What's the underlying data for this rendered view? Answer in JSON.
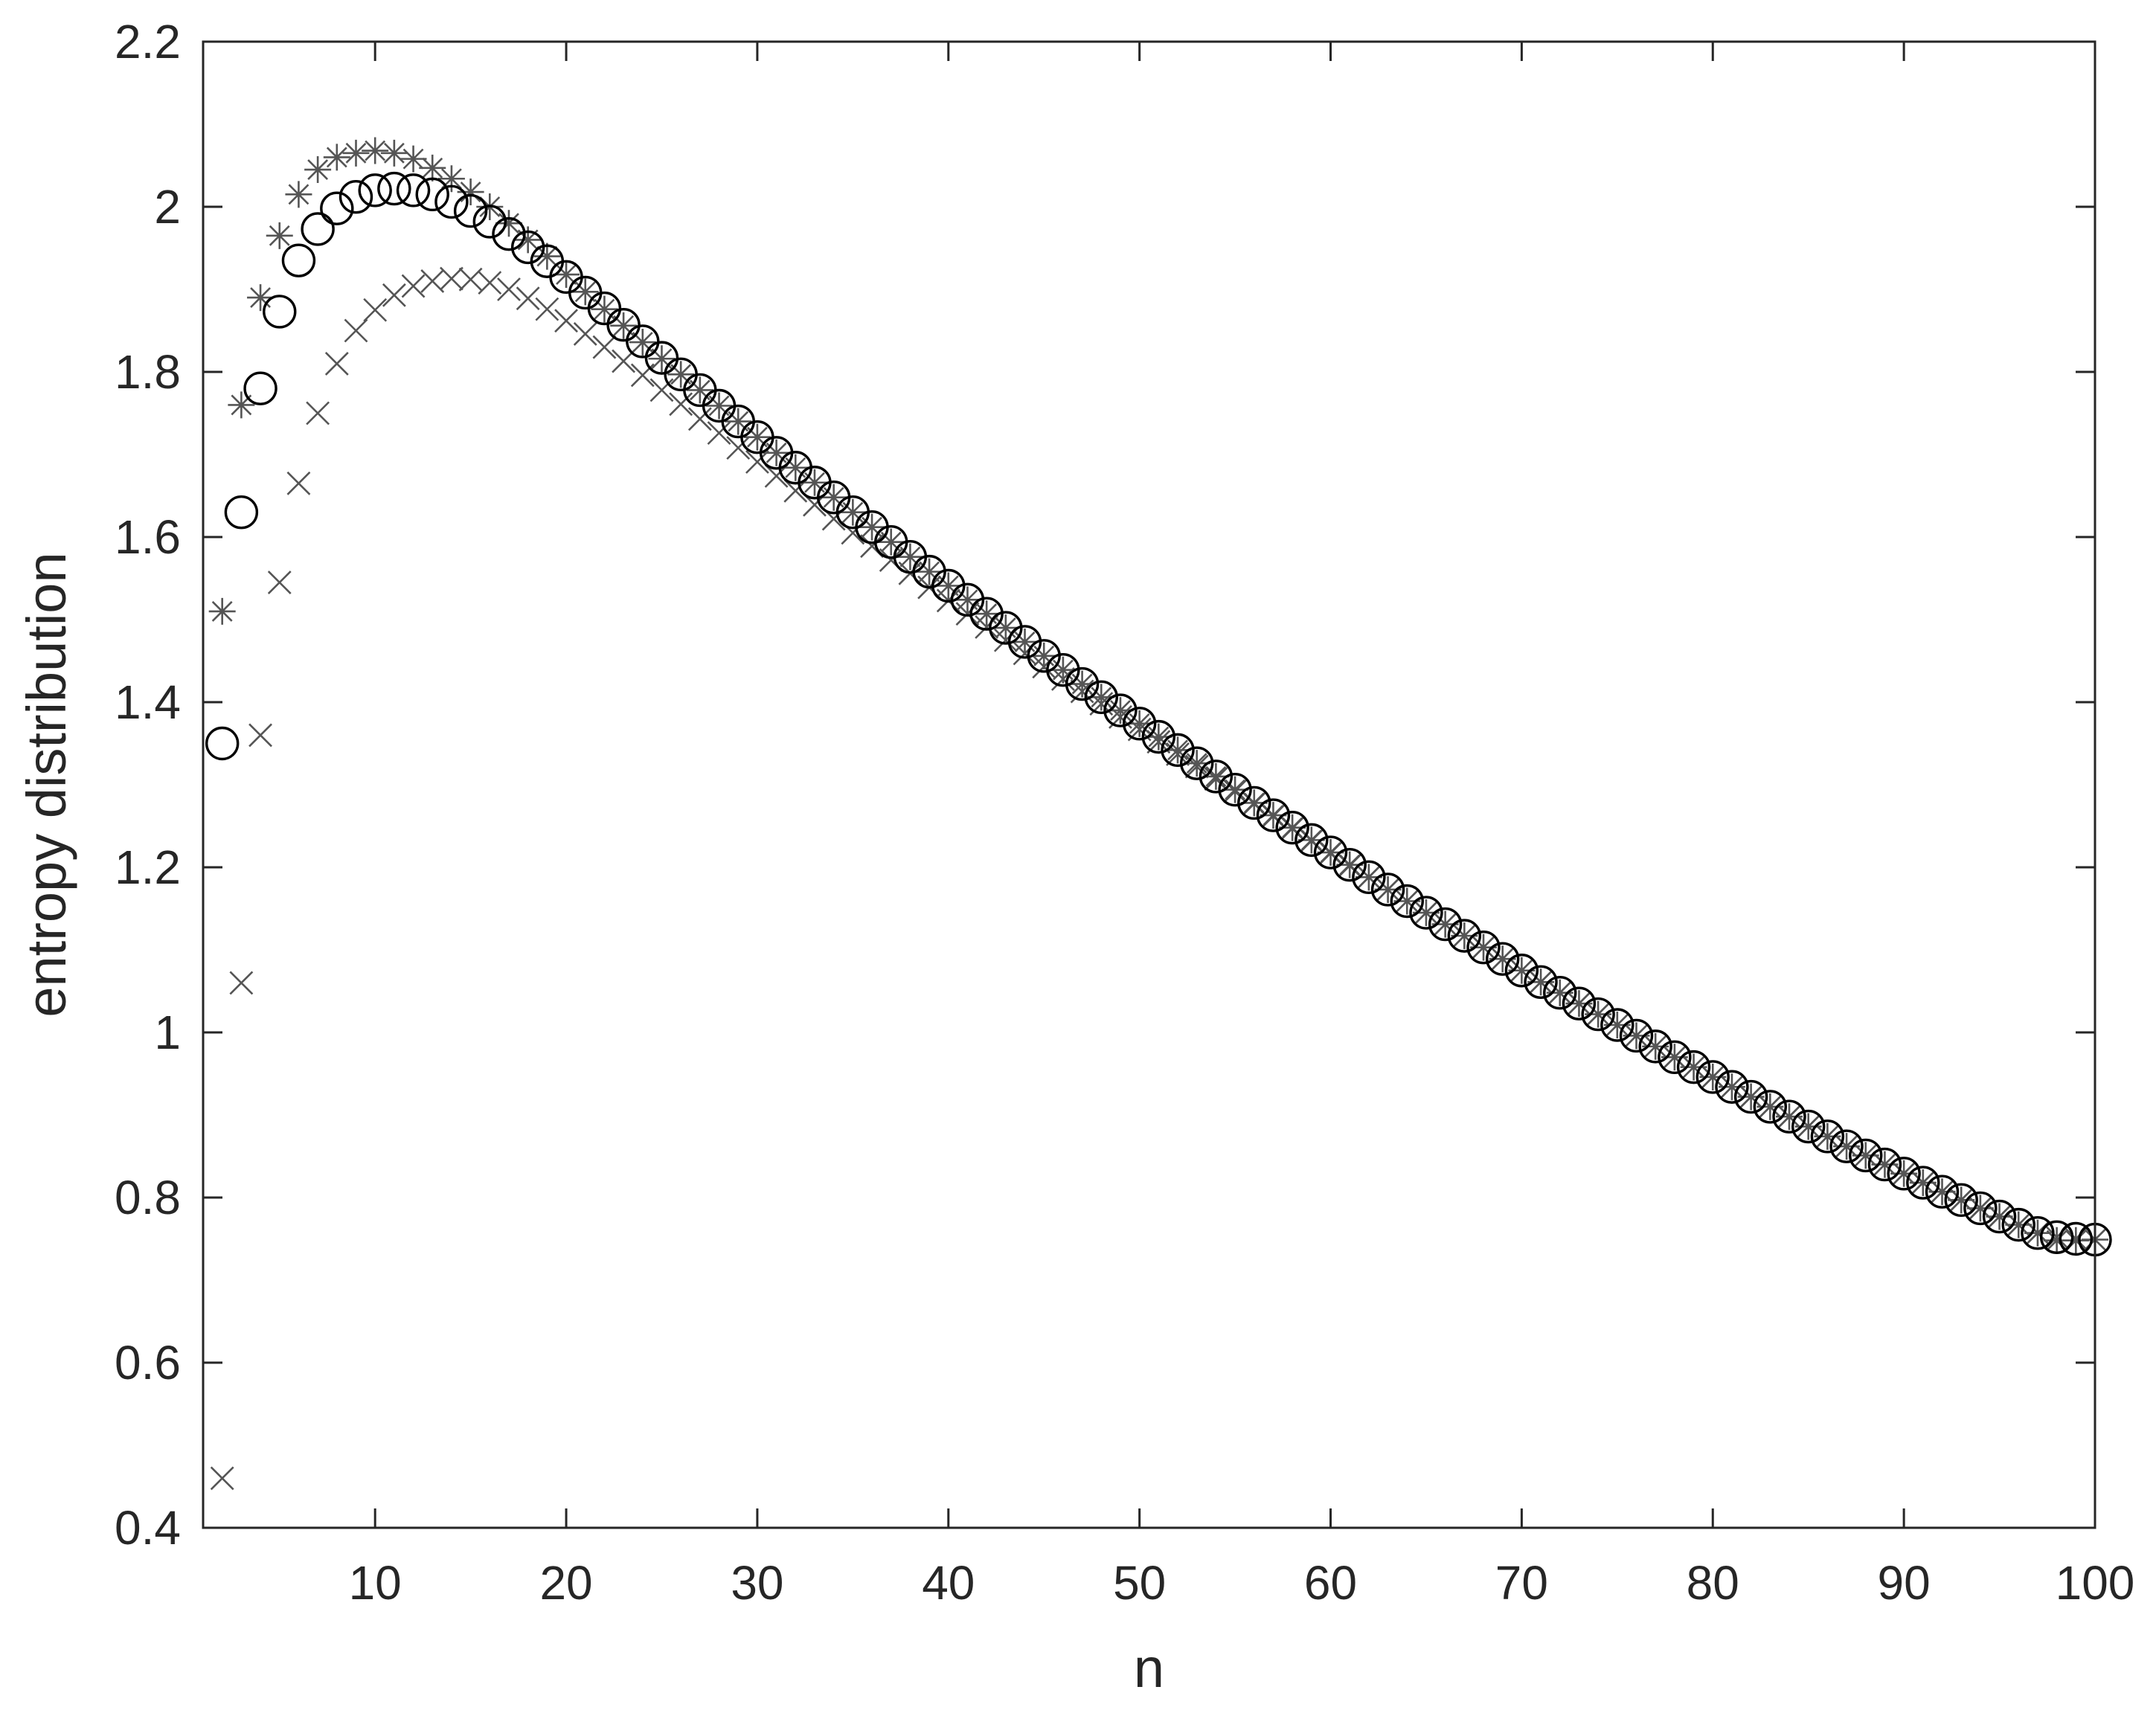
{
  "chart_data": {
    "type": "scatter",
    "title": "",
    "xlabel": "n",
    "ylabel": "entropy distribution",
    "xlim": [
      1,
      100
    ],
    "ylim": [
      0.4,
      2.2
    ],
    "grid": false,
    "legend": "none",
    "x_ticks": [
      10,
      20,
      30,
      40,
      50,
      60,
      70,
      80,
      90,
      100
    ],
    "x_tick_labels": [
      "10",
      "20",
      "30",
      "40",
      "50",
      "60",
      "70",
      "80",
      "90",
      "100"
    ],
    "y_ticks": [
      0.4,
      0.6,
      0.8,
      1.0,
      1.2,
      1.4,
      1.6,
      1.8,
      2.0,
      2.2
    ],
    "y_tick_labels": [
      "0.4",
      "0.6",
      "0.8",
      "1",
      "1.2",
      "1.4",
      "1.6",
      "1.8",
      "2",
      "2.2"
    ],
    "series": [
      {
        "marker": "star",
        "color": "#555555",
        "x": [
          2,
          3,
          4,
          5,
          6,
          7,
          8,
          9,
          10,
          11,
          12,
          13,
          14,
          15,
          16,
          17,
          18,
          19,
          20,
          21,
          22,
          23,
          24,
          25,
          26,
          27,
          28,
          29,
          30,
          31,
          32,
          33,
          34,
          35,
          36,
          37,
          38,
          39,
          40,
          41,
          42,
          43,
          44,
          45,
          46,
          47,
          48,
          49,
          50,
          51,
          52,
          53,
          54,
          55,
          56,
          57,
          58,
          59,
          60,
          61,
          62,
          63,
          64,
          65,
          66,
          67,
          68,
          69,
          70,
          71,
          72,
          73,
          74,
          75,
          76,
          77,
          78,
          79,
          80,
          81,
          82,
          83,
          84,
          85,
          86,
          87,
          88,
          89,
          90,
          91,
          92,
          93,
          94,
          95,
          96,
          97,
          98,
          99,
          100
        ],
        "values": [
          1.51,
          1.76,
          1.89,
          1.965,
          2.015,
          2.045,
          2.06,
          2.065,
          2.068,
          2.065,
          2.058,
          2.047,
          2.034,
          2.018,
          2.0,
          1.98,
          1.96,
          1.94,
          1.918,
          1.897,
          1.876,
          1.856,
          1.836,
          1.816,
          1.797,
          1.778,
          1.759,
          1.74,
          1.721,
          1.702,
          1.684,
          1.666,
          1.648,
          1.63,
          1.612,
          1.594,
          1.576,
          1.558,
          1.541,
          1.524,
          1.507,
          1.49,
          1.473,
          1.456,
          1.439,
          1.422,
          1.406,
          1.39,
          1.374,
          1.358,
          1.342,
          1.326,
          1.31,
          1.294,
          1.278,
          1.263,
          1.248,
          1.233,
          1.218,
          1.203,
          1.188,
          1.173,
          1.159,
          1.145,
          1.131,
          1.117,
          1.103,
          1.089,
          1.075,
          1.061,
          1.048,
          1.035,
          1.022,
          1.009,
          0.996,
          0.983,
          0.97,
          0.958,
          0.946,
          0.934,
          0.922,
          0.91,
          0.898,
          0.886,
          0.874,
          0.862,
          0.851,
          0.84,
          0.829,
          0.818,
          0.807,
          0.797,
          0.787,
          0.777,
          0.767,
          0.757,
          0.748,
          0.748,
          0.749
        ]
      },
      {
        "marker": "circle",
        "color": "#000000",
        "x": [
          2,
          3,
          4,
          5,
          6,
          7,
          8,
          9,
          10,
          11,
          12,
          13,
          14,
          15,
          16,
          17,
          18,
          19,
          20,
          21,
          22,
          23,
          24,
          25,
          26,
          27,
          28,
          29,
          30,
          31,
          32,
          33,
          34,
          35,
          36,
          37,
          38,
          39,
          40,
          41,
          42,
          43,
          44,
          45,
          46,
          47,
          48,
          49,
          50,
          51,
          52,
          53,
          54,
          55,
          56,
          57,
          58,
          59,
          60,
          61,
          62,
          63,
          64,
          65,
          66,
          67,
          68,
          69,
          70,
          71,
          72,
          73,
          74,
          75,
          76,
          77,
          78,
          79,
          80,
          81,
          82,
          83,
          84,
          85,
          86,
          87,
          88,
          89,
          90,
          91,
          92,
          93,
          94,
          95,
          96,
          97,
          98,
          99,
          100
        ],
        "values": [
          1.35,
          1.63,
          1.78,
          1.873,
          1.935,
          1.973,
          1.998,
          2.012,
          2.02,
          2.022,
          2.02,
          2.015,
          2.006,
          1.995,
          1.982,
          1.967,
          1.951,
          1.934,
          1.915,
          1.896,
          1.877,
          1.857,
          1.837,
          1.817,
          1.797,
          1.778,
          1.759,
          1.74,
          1.721,
          1.702,
          1.684,
          1.666,
          1.648,
          1.63,
          1.612,
          1.594,
          1.576,
          1.558,
          1.541,
          1.524,
          1.507,
          1.49,
          1.473,
          1.456,
          1.439,
          1.422,
          1.406,
          1.39,
          1.374,
          1.358,
          1.342,
          1.326,
          1.31,
          1.294,
          1.278,
          1.263,
          1.248,
          1.233,
          1.218,
          1.203,
          1.188,
          1.173,
          1.159,
          1.145,
          1.131,
          1.117,
          1.103,
          1.089,
          1.075,
          1.061,
          1.048,
          1.035,
          1.022,
          1.009,
          0.996,
          0.983,
          0.97,
          0.958,
          0.946,
          0.934,
          0.922,
          0.91,
          0.898,
          0.886,
          0.874,
          0.862,
          0.851,
          0.84,
          0.829,
          0.818,
          0.807,
          0.797,
          0.787,
          0.777,
          0.767,
          0.757,
          0.752,
          0.75,
          0.749
        ]
      },
      {
        "marker": "x",
        "color": "#555555",
        "x": [
          2,
          3,
          4,
          5,
          6,
          7,
          8,
          9,
          10,
          11,
          12,
          13,
          14,
          15,
          16,
          17,
          18,
          19,
          20,
          21,
          22,
          23,
          24,
          25,
          26,
          27,
          28,
          29,
          30,
          31,
          32,
          33,
          34,
          35,
          36,
          37,
          38,
          39,
          40,
          41,
          42,
          43,
          44,
          45,
          46,
          47,
          48,
          49,
          50,
          51,
          52,
          53,
          54,
          55,
          56,
          57,
          58,
          59,
          60,
          61,
          62,
          63,
          64,
          65,
          66,
          67,
          68,
          69,
          70,
          71,
          72,
          73,
          74,
          75,
          76,
          77,
          78,
          79,
          80,
          81,
          82,
          83,
          84,
          85,
          86,
          87,
          88,
          89,
          90,
          91,
          92,
          93,
          94,
          95,
          96,
          97,
          98,
          99,
          100
        ],
        "values": [
          0.46,
          1.06,
          1.36,
          1.545,
          1.665,
          1.75,
          1.81,
          1.85,
          1.875,
          1.893,
          1.904,
          1.91,
          1.913,
          1.912,
          1.908,
          1.9,
          1.889,
          1.876,
          1.862,
          1.846,
          1.83,
          1.813,
          1.796,
          1.778,
          1.761,
          1.743,
          1.726,
          1.708,
          1.691,
          1.674,
          1.656,
          1.639,
          1.622,
          1.605,
          1.589,
          1.572,
          1.556,
          1.539,
          1.523,
          1.507,
          1.491,
          1.475,
          1.459,
          1.443,
          1.428,
          1.413,
          1.398,
          1.382,
          1.367,
          1.352,
          1.337,
          1.322,
          1.307,
          1.292,
          1.277,
          1.262,
          1.247,
          1.232,
          1.217,
          1.202,
          1.188,
          1.173,
          1.159,
          1.145,
          1.131,
          1.117,
          1.103,
          1.089,
          1.075,
          1.061,
          1.048,
          1.035,
          1.022,
          1.009,
          0.996,
          0.983,
          0.97,
          0.958,
          0.946,
          0.934,
          0.922,
          0.91,
          0.898,
          0.886,
          0.874,
          0.862,
          0.851,
          0.84,
          0.829,
          0.818,
          0.807,
          0.797,
          0.787,
          0.777,
          0.767,
          0.757,
          0.752,
          0.75,
          0.749
        ]
      }
    ]
  }
}
